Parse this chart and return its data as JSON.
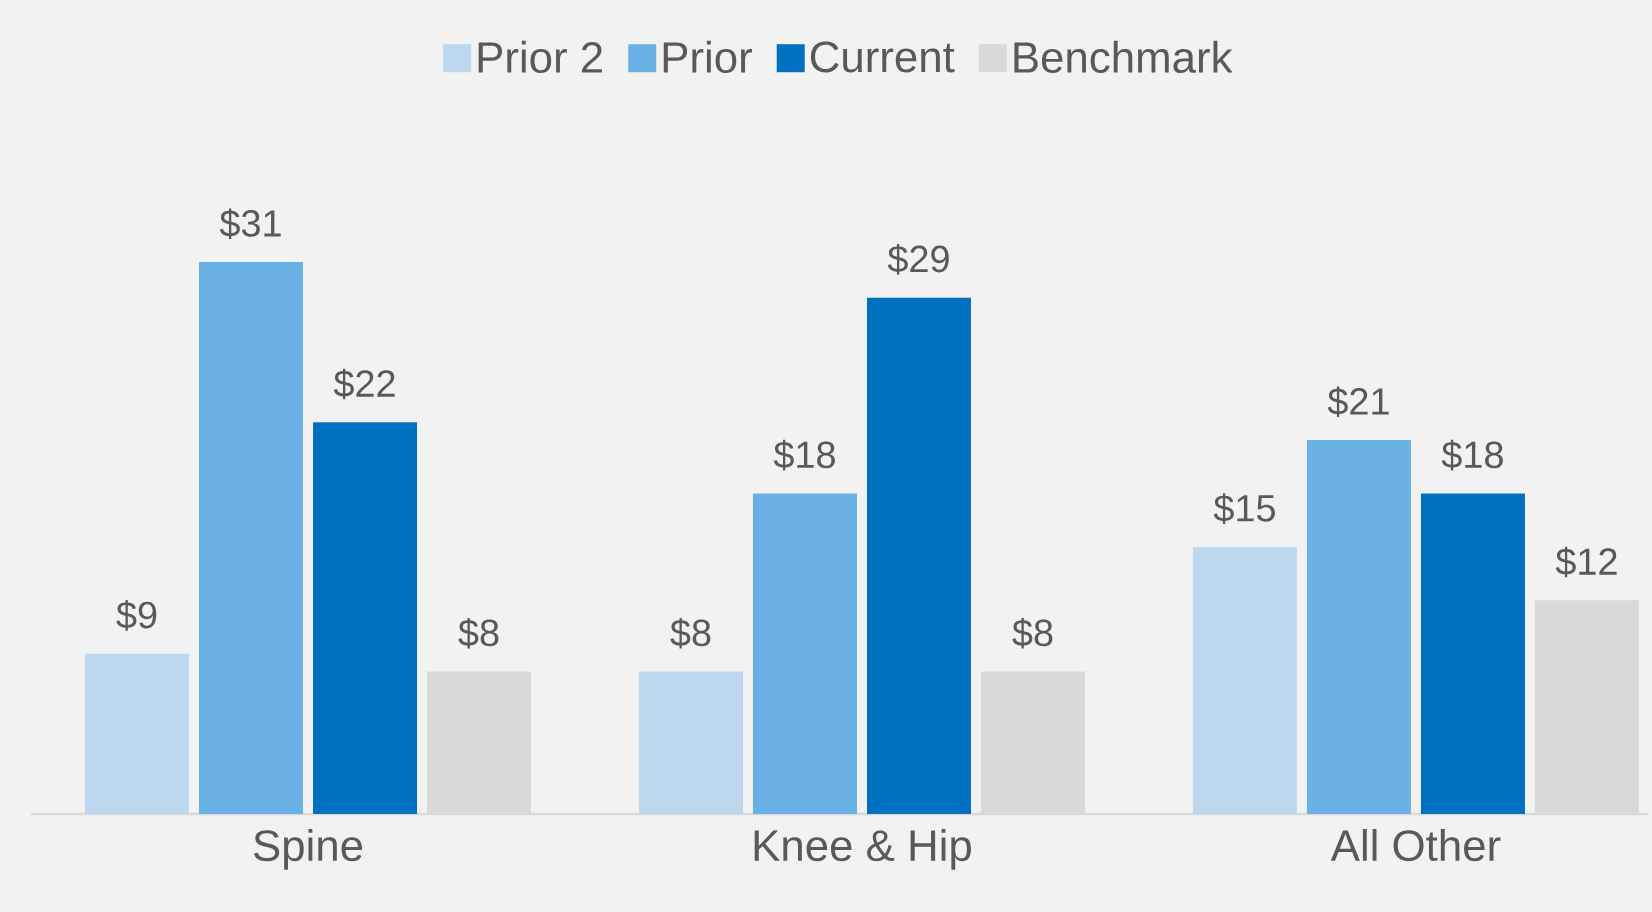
{
  "chart_data": {
    "type": "bar",
    "categories": [
      "Spine",
      "Knee & Hip",
      "All Other"
    ],
    "legend": "top",
    "series": [
      {
        "name": "Prior 2",
        "color": "#bdd7ee",
        "values": [
          9,
          8,
          15
        ],
        "value_labels": [
          "$9",
          "$8",
          "$15"
        ]
      },
      {
        "name": "Prior",
        "color": "#6ab2e6",
        "values": [
          31,
          18,
          21
        ],
        "value_labels": [
          "$31",
          "$18",
          "$21"
        ]
      },
      {
        "name": "Current",
        "color": "#0070c0",
        "values": [
          22,
          29,
          18
        ],
        "value_labels": [
          "$22",
          "$29",
          "$18"
        ]
      },
      {
        "name": "Benchmark",
        "color": "#d9d9d9",
        "values": [
          8,
          8,
          12
        ],
        "value_labels": [
          "$8",
          "$8",
          "$12"
        ]
      }
    ]
  }
}
